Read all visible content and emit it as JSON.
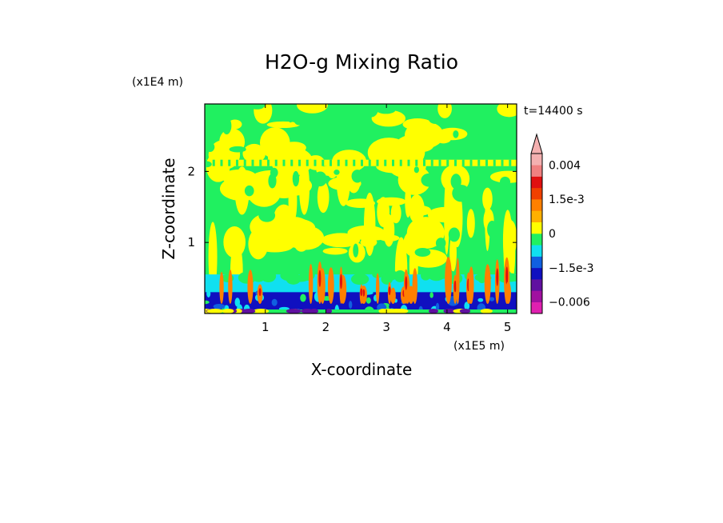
{
  "chart_data": {
    "type": "heatmap",
    "title": "H2O-g Mixing Ratio",
    "xlabel": "X-coordinate",
    "ylabel": "Z-coordinate",
    "x_unit": "(x1E5 m)",
    "y_unit": "(x1E4 m)",
    "time_label": "t=14400 s",
    "xlim": [
      0,
      5.15
    ],
    "ylim": [
      0,
      2.95
    ],
    "x_ticks": [
      1,
      2,
      3,
      4,
      5
    ],
    "y_ticks": [
      1,
      2
    ],
    "x_tick_labels": [
      "1",
      "2",
      "3",
      "4",
      "5"
    ],
    "y_tick_labels": [
      "1",
      "2"
    ],
    "colorbar": {
      "levels": [
        {
          "lo": -0.008,
          "hi": -0.006,
          "color": "#e020b0"
        },
        {
          "lo": -0.006,
          "hi": -0.004,
          "color": "#a010a0"
        },
        {
          "lo": -0.004,
          "hi": -0.002,
          "color": "#6010a0"
        },
        {
          "lo": -0.002,
          "hi": -0.0015,
          "color": "#1010c0"
        },
        {
          "lo": -0.0015,
          "hi": -0.001,
          "color": "#1060e0"
        },
        {
          "lo": -0.001,
          "hi": -0.0005,
          "color": "#10e0f0"
        },
        {
          "lo": -0.0005,
          "hi": 0,
          "color": "#20f060"
        },
        {
          "lo": 0,
          "hi": 0.0005,
          "color": "#ffff00"
        },
        {
          "lo": 0.0005,
          "hi": 0.001,
          "color": "#ffb000"
        },
        {
          "lo": 0.001,
          "hi": 0.0015,
          "color": "#ff8000"
        },
        {
          "lo": 0.0015,
          "hi": 0.002,
          "color": "#f04000"
        },
        {
          "lo": 0.002,
          "hi": 0.003,
          "color": "#e01010"
        },
        {
          "lo": 0.003,
          "hi": 0.004,
          "color": "#f08080"
        },
        {
          "lo": 0.004,
          "hi": 0.006,
          "color": "#f4b0b0"
        }
      ],
      "labels": [
        {
          "value": 0.004,
          "text": "0.004"
        },
        {
          "value": 0.0015,
          "text": "1.5e-3"
        },
        {
          "value": 0,
          "text": "0"
        },
        {
          "value": -0.0015,
          "text": "−1.5e-3"
        },
        {
          "value": -0.006,
          "text": "−0.006"
        }
      ]
    }
  }
}
